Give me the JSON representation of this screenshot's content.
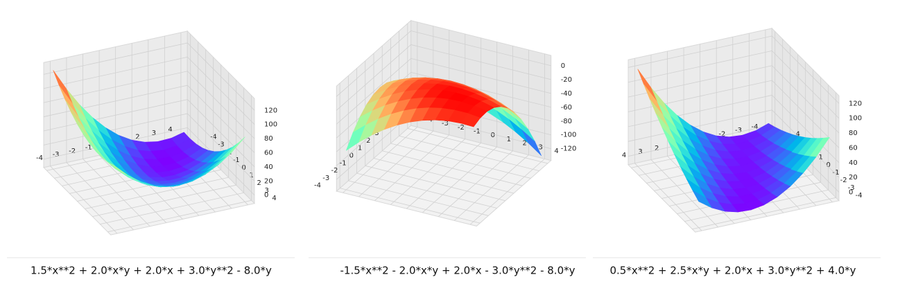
{
  "chart_data": [
    {
      "type": "surface3d",
      "title": "1.5*x**2 + 2.0*x*y + 2.0*x + 3.0*y**2 - 8.0*y",
      "colormap": "rainbow",
      "xlim": [
        -4,
        4
      ],
      "ylim": [
        -4,
        4
      ],
      "zlim": [
        -5,
        130
      ],
      "xticks": [
        -4,
        -3,
        -2,
        -1,
        0,
        1,
        2,
        3,
        4
      ],
      "yticks": [
        -4,
        -3,
        -2,
        -1,
        0,
        1,
        2,
        3,
        4
      ],
      "zticks": [
        0,
        20,
        40,
        60,
        80,
        100,
        120
      ]
    },
    {
      "type": "surface3d",
      "title": "-1.5*x**2 - 2.0*x*y + 2.0*x - 3.0*y**2 - 8.0*y",
      "colormap": "rainbow",
      "xlim": [
        -4,
        4
      ],
      "ylim": [
        -4,
        4
      ],
      "zlim": [
        -130,
        8
      ],
      "xticks": [
        -4,
        -3,
        -2,
        -1,
        0,
        1,
        2,
        3,
        4
      ],
      "yticks": [
        -4,
        -3,
        -2,
        -1,
        0,
        1,
        2,
        3,
        4
      ],
      "zticks": [
        -120,
        -100,
        -80,
        -60,
        -40,
        -20,
        0
      ]
    },
    {
      "type": "surface3d",
      "title": "0.5*x**2 + 2.5*x*y + 2.0*x + 3.0*y**2 + 4.0*y",
      "colormap": "rainbow",
      "xlim": [
        -4,
        4
      ],
      "ylim": [
        -4,
        4
      ],
      "zlim": [
        -5,
        124
      ],
      "xticks": [
        -4,
        -3,
        -2,
        -1,
        0,
        1,
        2,
        3,
        4
      ],
      "yticks": [
        -4,
        -3,
        -2,
        -1,
        0,
        1,
        2,
        3,
        4
      ],
      "zticks": [
        0,
        20,
        40,
        60,
        80,
        100,
        120
      ]
    }
  ]
}
